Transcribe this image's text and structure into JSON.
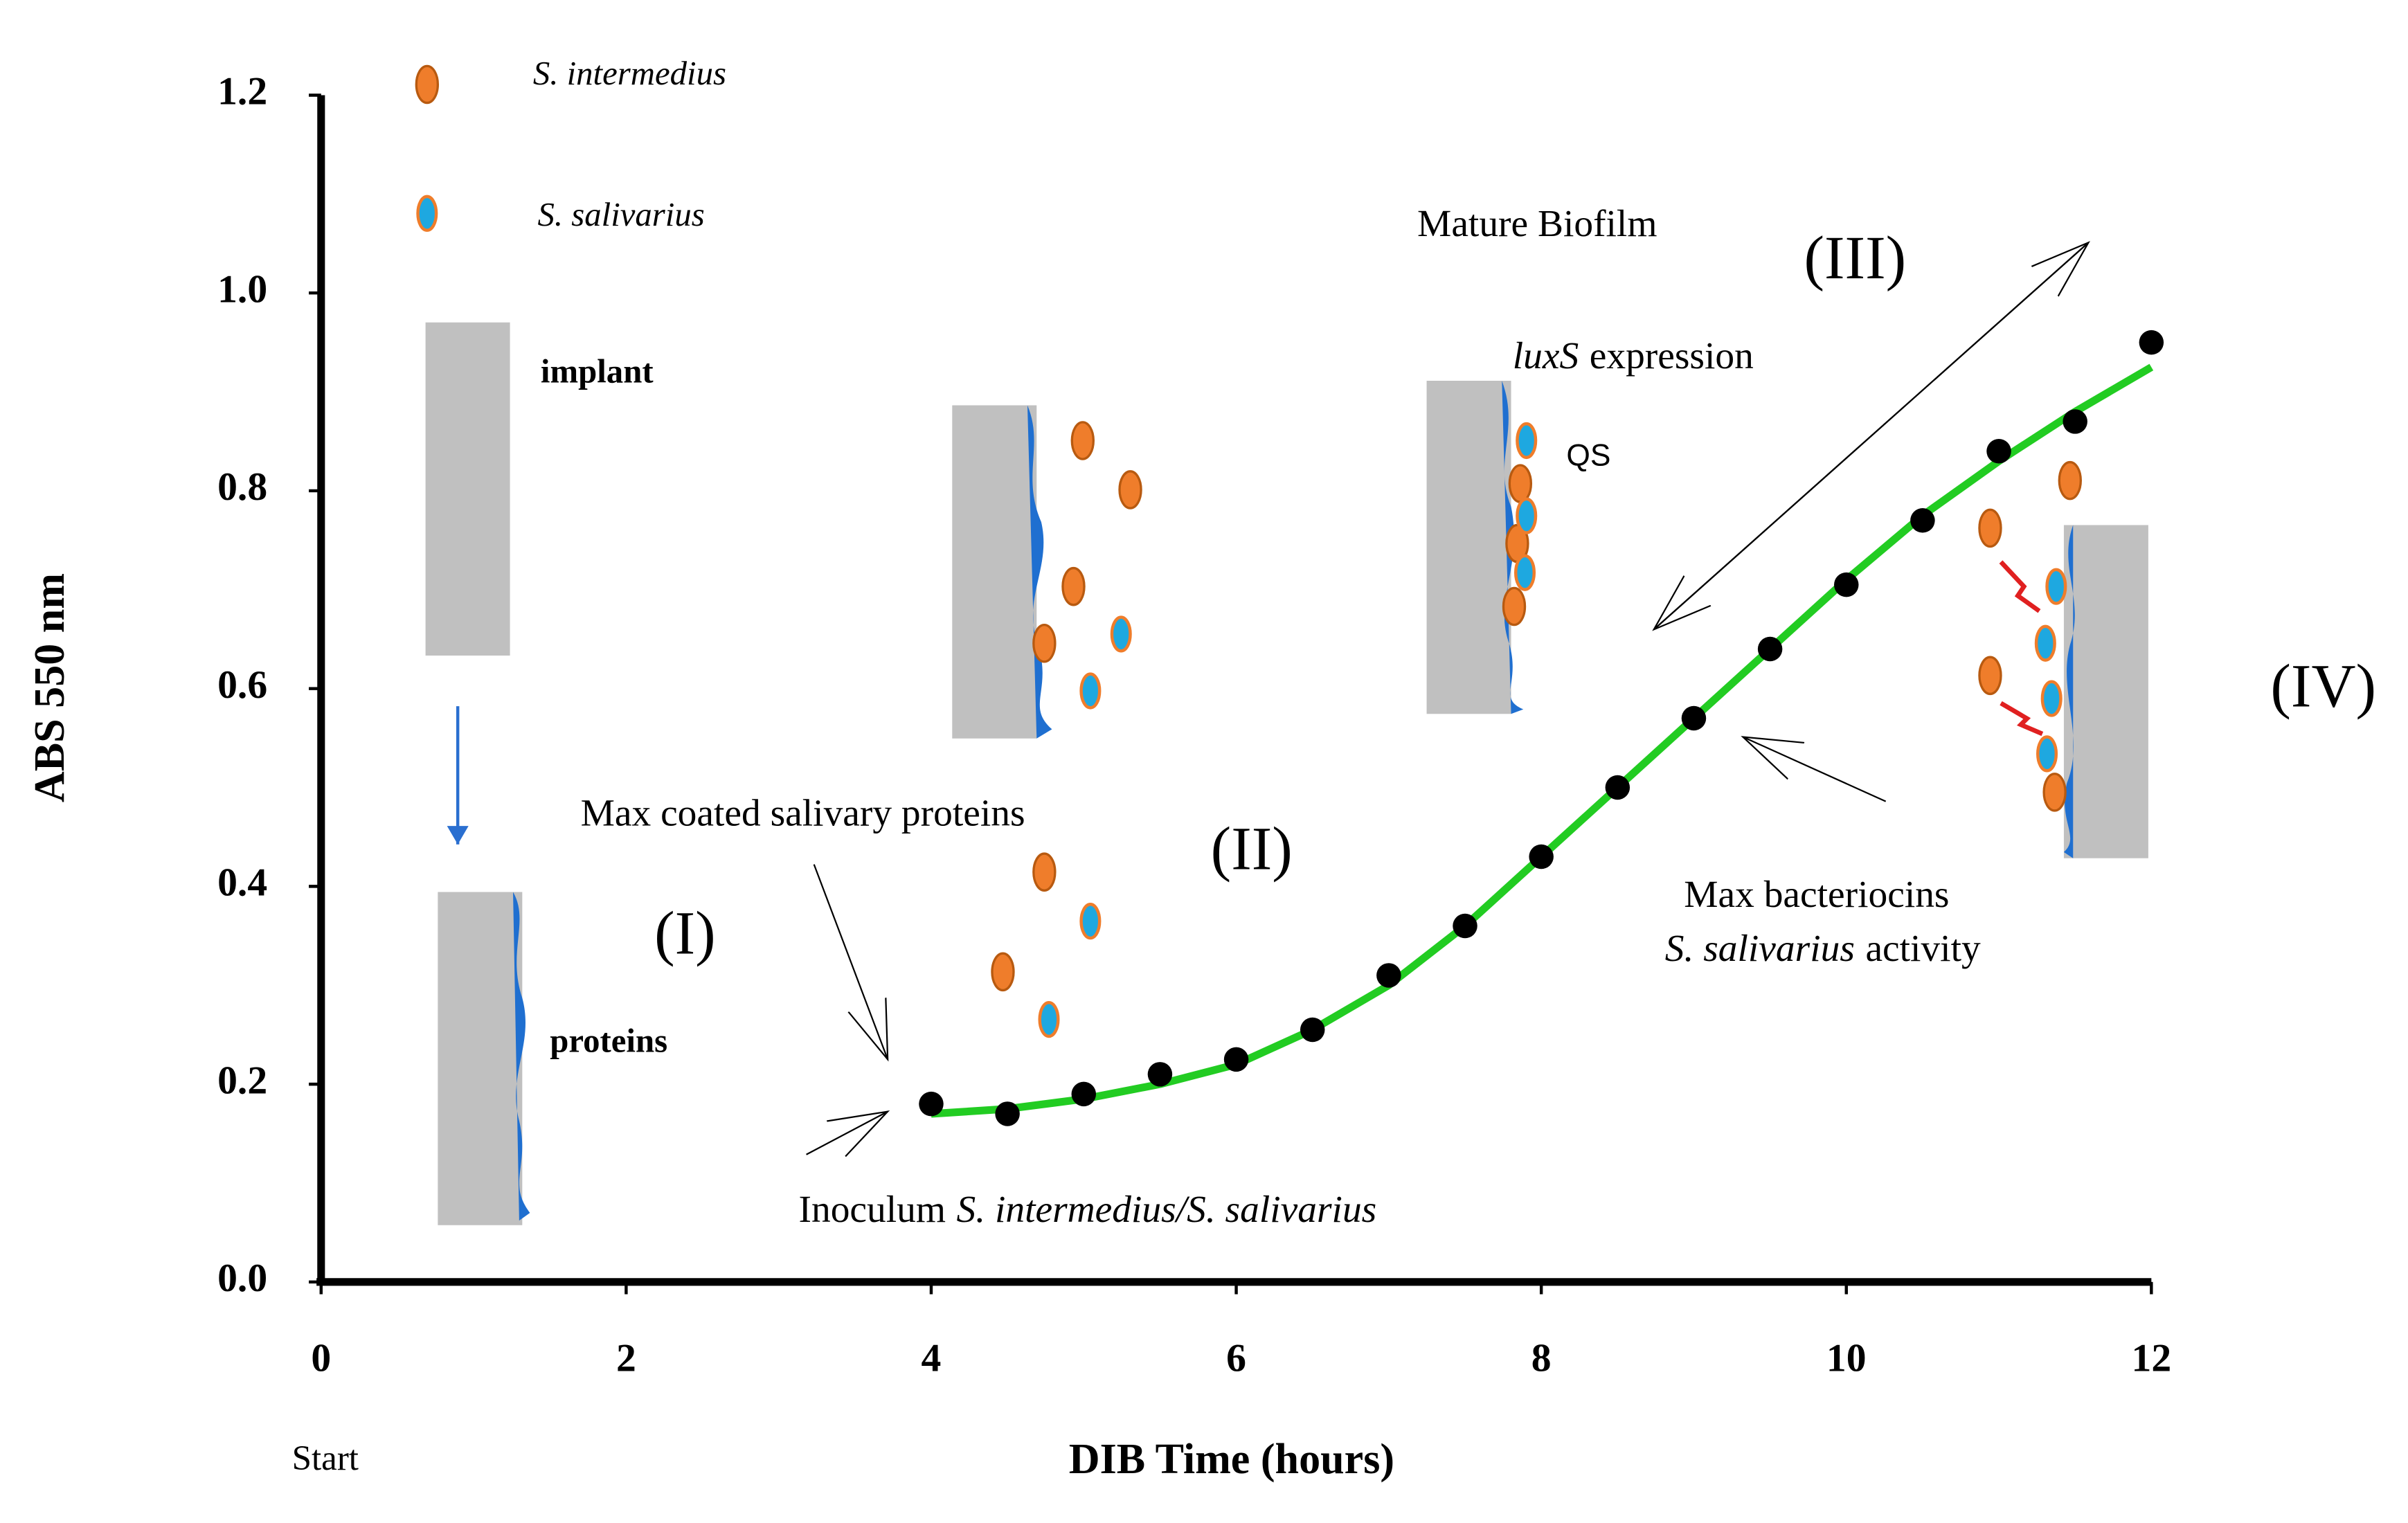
{
  "chart_data": {
    "type": "scatter",
    "xlabel": "DIB Time (hours)",
    "ylabel": "ABS 550 nm",
    "x": [
      4,
      4.5,
      5,
      5.5,
      6,
      6.5,
      7,
      7.5,
      8,
      8.5,
      9,
      9.5,
      10,
      10.5,
      11,
      11.5,
      12
    ],
    "series": [
      {
        "type": "scatter",
        "color": "#000000",
        "values": [
          0.18,
          0.17,
          0.19,
          0.21,
          0.225,
          0.255,
          0.31,
          0.36,
          0.43,
          0.5,
          0.57,
          0.64,
          0.705,
          0.77,
          0.84,
          0.87,
          0.95
        ]
      },
      {
        "type": "line",
        "color": "#22cc22",
        "values": [
          0.17,
          0.175,
          0.185,
          0.2,
          0.22,
          0.255,
          0.3,
          0.36,
          0.43,
          0.5,
          0.57,
          0.64,
          0.71,
          0.775,
          0.83,
          0.88,
          0.925
        ]
      }
    ],
    "xlim": [
      0,
      12
    ],
    "xticks": [
      0,
      2,
      4,
      6,
      8,
      10,
      12
    ],
    "ylim": [
      0,
      1.2
    ],
    "yticks": [
      {
        "value": 0,
        "label": "0.0"
      },
      0.2,
      0.4,
      0.6,
      0.8,
      {
        "value": 1,
        "label": "1.0"
      },
      1.2
    ],
    "annotations": [
      "S. intermedius",
      "S. salivarius",
      "implant",
      "proteins",
      "Max coated salivary proteins",
      "(I)",
      "(II)",
      "(III)",
      "(IV)",
      "Mature Biofilm",
      [
        "luxS",
        "expression"
      ],
      "QS",
      "Max bacteriocins",
      [
        "S. salivarius",
        "activity"
      ],
      [
        "Inoculum",
        "S. intermedius/S. salivarius"
      ],
      "Start"
    ]
  }
}
